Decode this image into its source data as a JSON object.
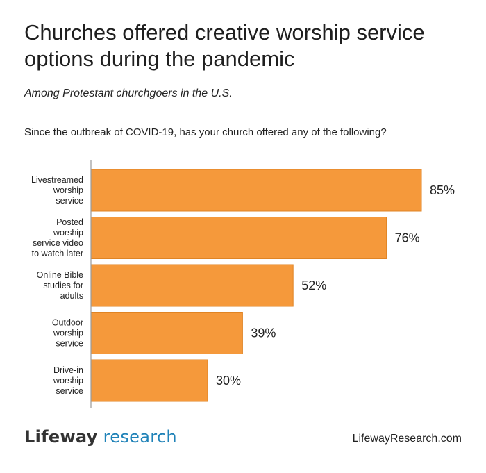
{
  "title": "Churches offered creative worship service options during the pandemic",
  "subtitle": "Among Protestant churchgoers in the U.S.",
  "question": "Since the outbreak of COVID-19, has your church offered any of the following?",
  "footer": {
    "logo_brand": "Lifeway",
    "logo_suffix": "research",
    "website": "LifewayResearch.com"
  },
  "colors": {
    "bar": "#f5993b",
    "bar_stroke": "#e08424",
    "axis": "#9a9a9a",
    "logo_accent": "#1f82b8"
  },
  "chart_data": {
    "type": "bar",
    "orientation": "horizontal",
    "categories": [
      [
        "Livestreamed",
        "worship",
        "service"
      ],
      [
        "Posted",
        "worship",
        "service video",
        "to watch later"
      ],
      [
        "Online Bible",
        "studies for",
        "adults"
      ],
      [
        "Outdoor",
        "worship",
        "service"
      ],
      [
        "Drive-in",
        "worship",
        "service"
      ]
    ],
    "values": [
      85,
      76,
      52,
      39,
      30
    ],
    "value_labels": [
      "85%",
      "76%",
      "52%",
      "39%",
      "30%"
    ],
    "xlim": [
      0,
      100
    ],
    "grid": false
  }
}
